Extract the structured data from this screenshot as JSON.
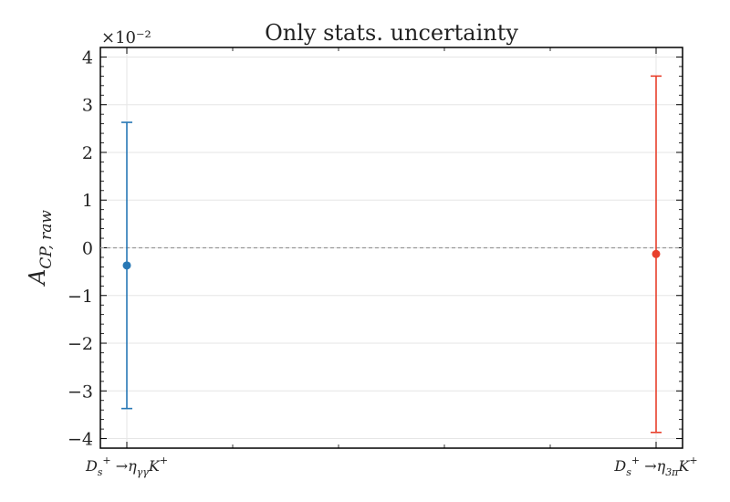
{
  "chart_data": {
    "type": "scatter",
    "title": "Only stats. uncertainty",
    "xlabel": "",
    "ylabel": {
      "main": "A",
      "sub": "CP, raw"
    },
    "y_multiplier": "×10⁻²",
    "ylim": [
      -4.2,
      4.2
    ],
    "yticks": [
      4,
      3,
      2,
      1,
      0,
      -1,
      -2,
      -3,
      -4
    ],
    "ytick_labels": [
      "4",
      "3",
      "2",
      "1",
      "0",
      "−1",
      "−2",
      "−3",
      "−4"
    ],
    "grid": true,
    "reference_line": 0,
    "categories": [
      "D_s^+ → η_γγ K^+",
      "D_s^+ → η_3π K^+"
    ],
    "points": [
      {
        "category": "D_s^+ → η_γγ K^+",
        "value": -0.37,
        "err_low": -3.37,
        "err_high": 2.63,
        "color": "#2878b5"
      },
      {
        "category": "D_s^+ → η_3π K^+",
        "value": -0.13,
        "err_low": -3.87,
        "err_high": 3.6,
        "color": "#e8402c"
      }
    ]
  }
}
